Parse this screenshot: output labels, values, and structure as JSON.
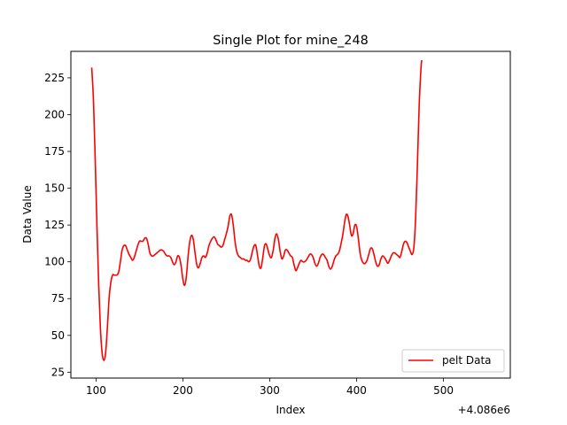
{
  "chart_data": {
    "type": "line",
    "title": "Single Plot for mine_248",
    "xlabel": "Index",
    "ylabel": "Data Value",
    "x_offset_label": "+4.086e6",
    "xlim": [
      71,
      577
    ],
    "ylim": [
      21,
      243
    ],
    "x_ticks": [
      100,
      200,
      300,
      400,
      500
    ],
    "y_ticks": [
      25,
      50,
      75,
      100,
      125,
      150,
      175,
      200,
      225
    ],
    "grid": false,
    "legend_position": "lower-right",
    "series": [
      {
        "name": "pelt Data",
        "color": "#ff0000",
        "points": [
          [
            95,
            232
          ],
          [
            97,
            210
          ],
          [
            99,
            170
          ],
          [
            101,
            125
          ],
          [
            103,
            85
          ],
          [
            105,
            55
          ],
          [
            107,
            38
          ],
          [
            109,
            33
          ],
          [
            111,
            38
          ],
          [
            113,
            55
          ],
          [
            115,
            75
          ],
          [
            117,
            86
          ],
          [
            119,
            91
          ],
          [
            121,
            91
          ],
          [
            124,
            91
          ],
          [
            126,
            93
          ],
          [
            128,
            100
          ],
          [
            130,
            108
          ],
          [
            132,
            111
          ],
          [
            134,
            111
          ],
          [
            136,
            108
          ],
          [
            138,
            105
          ],
          [
            140,
            103
          ],
          [
            142,
            101
          ],
          [
            144,
            103
          ],
          [
            146,
            107
          ],
          [
            148,
            111
          ],
          [
            150,
            114
          ],
          [
            152,
            114
          ],
          [
            154,
            114
          ],
          [
            156,
            116
          ],
          [
            158,
            116
          ],
          [
            160,
            112
          ],
          [
            162,
            106
          ],
          [
            164,
            104
          ],
          [
            166,
            104
          ],
          [
            168,
            105
          ],
          [
            170,
            106
          ],
          [
            172,
            107
          ],
          [
            174,
            108
          ],
          [
            176,
            108
          ],
          [
            178,
            107
          ],
          [
            180,
            105
          ],
          [
            182,
            104
          ],
          [
            184,
            104
          ],
          [
            186,
            103
          ],
          [
            188,
            100
          ],
          [
            190,
            98
          ],
          [
            192,
            100
          ],
          [
            194,
            104
          ],
          [
            196,
            103
          ],
          [
            198,
            97
          ],
          [
            200,
            88
          ],
          [
            202,
            84
          ],
          [
            204,
            90
          ],
          [
            206,
            104
          ],
          [
            208,
            114
          ],
          [
            210,
            118
          ],
          [
            212,
            115
          ],
          [
            214,
            106
          ],
          [
            216,
            98
          ],
          [
            218,
            96
          ],
          [
            220,
            99
          ],
          [
            222,
            103
          ],
          [
            224,
            104
          ],
          [
            226,
            103
          ],
          [
            228,
            106
          ],
          [
            230,
            111
          ],
          [
            232,
            114
          ],
          [
            234,
            116
          ],
          [
            236,
            117
          ],
          [
            238,
            115
          ],
          [
            240,
            112
          ],
          [
            242,
            111
          ],
          [
            244,
            110
          ],
          [
            246,
            111
          ],
          [
            248,
            115
          ],
          [
            250,
            119
          ],
          [
            252,
            124
          ],
          [
            254,
            131
          ],
          [
            256,
            132
          ],
          [
            258,
            125
          ],
          [
            260,
            114
          ],
          [
            262,
            107
          ],
          [
            264,
            104
          ],
          [
            266,
            103
          ],
          [
            268,
            102
          ],
          [
            270,
            102
          ],
          [
            272,
            101
          ],
          [
            274,
            101
          ],
          [
            276,
            100
          ],
          [
            278,
            102
          ],
          [
            280,
            107
          ],
          [
            282,
            111
          ],
          [
            284,
            111
          ],
          [
            286,
            104
          ],
          [
            288,
            97
          ],
          [
            290,
            96
          ],
          [
            292,
            103
          ],
          [
            294,
            111
          ],
          [
            296,
            112
          ],
          [
            298,
            108
          ],
          [
            300,
            104
          ],
          [
            302,
            103
          ],
          [
            304,
            108
          ],
          [
            306,
            116
          ],
          [
            308,
            119
          ],
          [
            310,
            115
          ],
          [
            312,
            107
          ],
          [
            314,
            102
          ],
          [
            316,
            104
          ],
          [
            318,
            108
          ],
          [
            320,
            108
          ],
          [
            322,
            106
          ],
          [
            324,
            104
          ],
          [
            326,
            103
          ],
          [
            328,
            98
          ],
          [
            330,
            94
          ],
          [
            332,
            96
          ],
          [
            334,
            99
          ],
          [
            336,
            101
          ],
          [
            338,
            100
          ],
          [
            340,
            100
          ],
          [
            342,
            101
          ],
          [
            344,
            103
          ],
          [
            346,
            105
          ],
          [
            348,
            105
          ],
          [
            350,
            103
          ],
          [
            352,
            99
          ],
          [
            354,
            97
          ],
          [
            356,
            99
          ],
          [
            358,
            103
          ],
          [
            360,
            105
          ],
          [
            362,
            105
          ],
          [
            364,
            103
          ],
          [
            366,
            101
          ],
          [
            368,
            97
          ],
          [
            370,
            95
          ],
          [
            372,
            97
          ],
          [
            374,
            101
          ],
          [
            376,
            104
          ],
          [
            378,
            105
          ],
          [
            380,
            107
          ],
          [
            382,
            112
          ],
          [
            384,
            118
          ],
          [
            386,
            126
          ],
          [
            388,
            132
          ],
          [
            390,
            131
          ],
          [
            392,
            125
          ],
          [
            394,
            118
          ],
          [
            396,
            119
          ],
          [
            398,
            125
          ],
          [
            400,
            124
          ],
          [
            402,
            116
          ],
          [
            404,
            106
          ],
          [
            406,
            101
          ],
          [
            408,
            99
          ],
          [
            410,
            99
          ],
          [
            412,
            101
          ],
          [
            414,
            105
          ],
          [
            416,
            109
          ],
          [
            418,
            109
          ],
          [
            420,
            105
          ],
          [
            422,
            100
          ],
          [
            424,
            97
          ],
          [
            426,
            98
          ],
          [
            428,
            102
          ],
          [
            430,
            104
          ],
          [
            432,
            103
          ],
          [
            434,
            101
          ],
          [
            436,
            99
          ],
          [
            438,
            101
          ],
          [
            440,
            104
          ],
          [
            442,
            106
          ],
          [
            444,
            106
          ],
          [
            446,
            105
          ],
          [
            448,
            104
          ],
          [
            450,
            103
          ],
          [
            452,
            107
          ],
          [
            454,
            112
          ],
          [
            456,
            114
          ],
          [
            458,
            113
          ],
          [
            460,
            110
          ],
          [
            462,
            107
          ],
          [
            464,
            105
          ],
          [
            466,
            110
          ],
          [
            468,
            130
          ],
          [
            470,
            165
          ],
          [
            472,
            205
          ],
          [
            474,
            230
          ],
          [
            475,
            237
          ]
        ]
      }
    ]
  }
}
